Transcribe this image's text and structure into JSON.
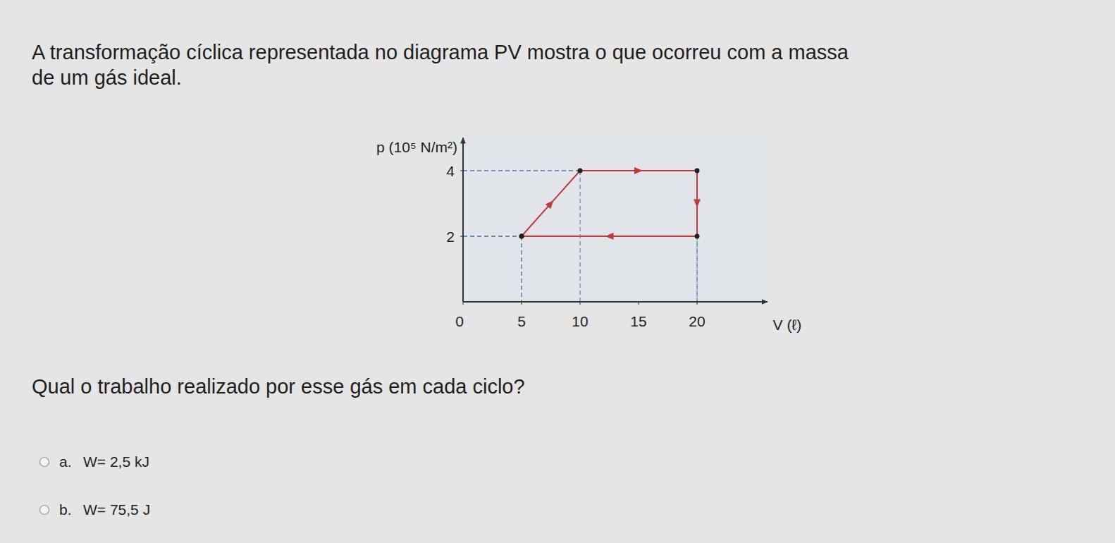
{
  "intro_lines": [
    "A transformação cíclica representada no diagrama PV mostra o que ocorreu com a massa",
    "de um gás ideal."
  ],
  "chart_data": {
    "type": "line",
    "x_label": "V (ℓ)",
    "y_label": "p (10⁵ N/m²)",
    "xlim": [
      0,
      26
    ],
    "ylim": [
      0,
      5
    ],
    "xticks": [
      0,
      5,
      10,
      15,
      20
    ],
    "yticks": [
      2,
      4
    ],
    "grid": false,
    "marker": "dot",
    "series": [
      {
        "name": "ciclo",
        "color": "#c0393b",
        "x": [
          5,
          10,
          20,
          20,
          5
        ],
        "values": [
          2,
          4,
          4,
          2,
          2
        ]
      }
    ]
  },
  "question": "Qual o trabalho realizado por esse gás em cada ciclo?",
  "options": [
    {
      "letter": "a.",
      "text": "W= 2,5 kJ"
    },
    {
      "letter": "b.",
      "text": "W= 75,5 J"
    }
  ]
}
